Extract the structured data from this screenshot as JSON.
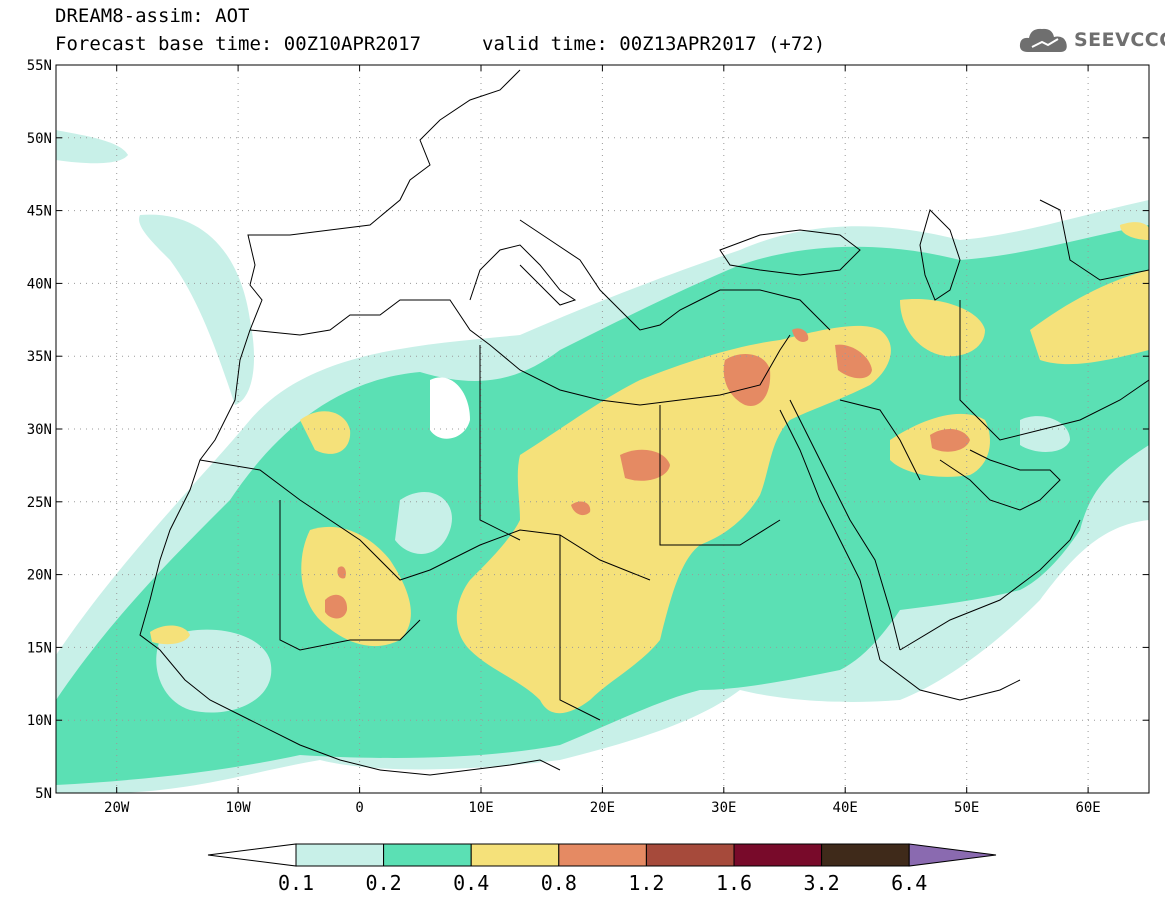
{
  "header": {
    "title_line_1": "DREAM8-assim: AOT",
    "title_line_2": "Forecast base time: 00Z10APR2017",
    "valid_time": "valid time: 00Z13APR2017 (+72)",
    "logo_text": "SEEVCCC",
    "logo_icon": "cloud-icon"
  },
  "map": {
    "variable": "AOT",
    "lon_range": [
      -25,
      65
    ],
    "lat_range": [
      5,
      55
    ],
    "lat_labels": [
      "55N",
      "50N",
      "45N",
      "40N",
      "35N",
      "30N",
      "25N",
      "20N",
      "15N",
      "10N",
      "5N"
    ],
    "lon_labels": [
      "20W",
      "10W",
      "0",
      "10E",
      "20E",
      "30E",
      "40E",
      "50E",
      "60E"
    ],
    "grid": "dotted",
    "coastline_color": "#000000"
  },
  "colorbar": {
    "labels": [
      "0.1",
      "0.2",
      "0.4",
      "0.8",
      "1.2",
      "1.6",
      "3.2",
      "6.4"
    ],
    "colors": [
      "#c8f0e8",
      "#5be0b4",
      "#f5e17a",
      "#e58a63",
      "#a64a3b",
      "#780a2a",
      "#3f2a1a"
    ],
    "under_color": "#ffffff",
    "over_color": "#8a6ab0"
  }
}
